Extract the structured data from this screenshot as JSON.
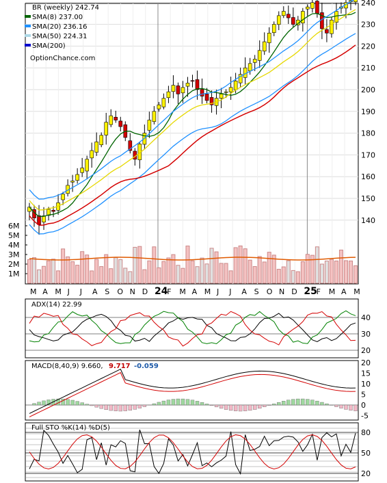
{
  "chart_data": {
    "type": "stock-chart",
    "legend": [
      {
        "label": "BR (weekly) 242.74",
        "color": "#000000"
      },
      {
        "label": "SMA(8) 237.00",
        "color": "#006400"
      },
      {
        "label": "SMA(20) 236.16",
        "color": "#1e90ff"
      },
      {
        "label": "SMA(50) 224.31",
        "color": "#add8e6"
      },
      {
        "label": "SMA(200)",
        "color": "#0000cd"
      }
    ],
    "watermark": "OptionChance.com",
    "price_axis": {
      "min": 130,
      "max": 250,
      "ticks": [
        140,
        150,
        160,
        170,
        180,
        190,
        200,
        210,
        220,
        230,
        240
      ]
    },
    "volume_axis": {
      "ticks": [
        "1M",
        "2M",
        "3M",
        "4M",
        "5M",
        "6M"
      ]
    },
    "months": [
      "M",
      "A",
      "M",
      "J",
      "J",
      "A",
      "S",
      "O",
      "N",
      "D",
      "24",
      "F",
      "M",
      "A",
      "M",
      "J",
      "J",
      "A",
      "S",
      "O",
      "N",
      "D",
      "25",
      "F",
      "M",
      "A",
      "M"
    ],
    "closes": [
      146,
      141,
      138,
      142,
      145,
      144,
      148,
      152,
      156,
      158,
      161,
      164,
      168,
      172,
      176,
      179,
      185,
      188,
      186,
      183,
      178,
      172,
      168,
      175,
      180,
      186,
      190,
      193,
      196,
      199,
      202,
      198,
      201,
      203,
      204,
      200,
      197,
      195,
      193,
      196,
      198,
      199,
      201,
      204,
      207,
      210,
      212,
      214,
      218,
      222,
      226,
      230,
      234,
      236,
      233,
      230,
      232,
      236,
      238,
      240,
      235,
      228,
      226,
      232,
      236,
      238,
      240,
      241,
      243
    ],
    "adx": {
      "label": "ADX(14) 22.99",
      "axis": [
        20,
        30,
        40
      ]
    },
    "macd": {
      "label": "MACD(8,40,9) 9.660,",
      "value2": "9.717",
      "value3": "-0.059",
      "axis": [
        -5,
        0,
        5,
        10,
        15,
        20
      ]
    },
    "stochastic": {
      "label": "Full STO %K(14) %D(5)",
      "axis": [
        20,
        50,
        80
      ]
    }
  }
}
